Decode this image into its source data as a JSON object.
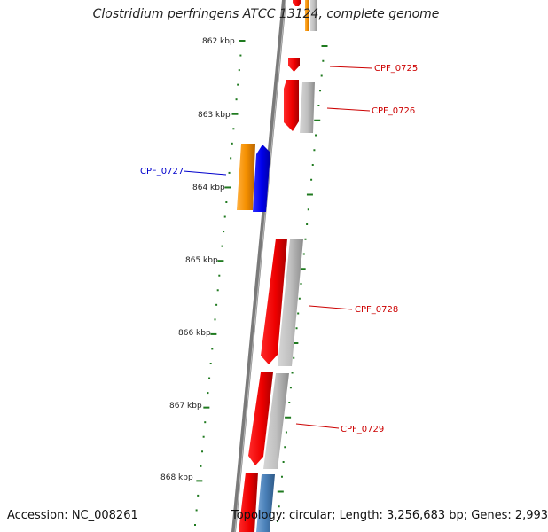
{
  "title": "Clostridium perfringens ATCC 13124, complete genome",
  "footer": {
    "accession": "Accession: NC_008261",
    "summary": "Topology: circular; Length: 3,256,683 bp; Genes: 2,993"
  },
  "colors": {
    "backbone": "#7a7a7a",
    "ticks": "#1f7a1f",
    "forward_label": "#cc0000",
    "reverse_label": "#0000cc"
  },
  "scale_ticks": [
    "862 kbp",
    "863 kbp",
    "864 kbp",
    "865 kbp",
    "866 kbp",
    "867 kbp",
    "868 kbp"
  ],
  "gene_labels": [
    {
      "name": "CPF_0725",
      "strand": "forward"
    },
    {
      "name": "CPF_0726",
      "strand": "forward"
    },
    {
      "name": "CPF_0727",
      "strand": "reverse"
    },
    {
      "name": "CPF_0728",
      "strand": "forward"
    },
    {
      "name": "CPF_0729",
      "strand": "forward"
    }
  ]
}
